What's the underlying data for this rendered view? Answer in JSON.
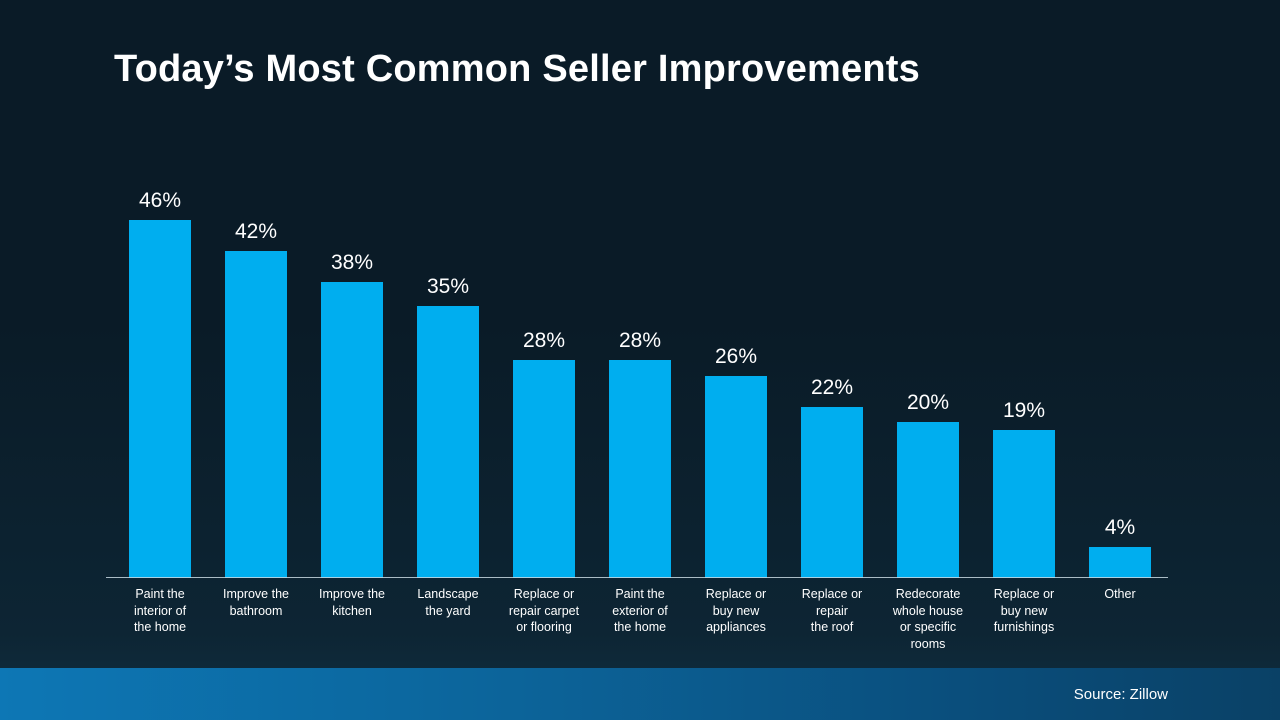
{
  "title": "Today’s Most Common Seller Improvements",
  "source": "Source: Zillow",
  "colors": {
    "background": "#0a1b27",
    "bar": "#00aeef",
    "title_text": "#ffffff",
    "label_text": "#ffffff",
    "axis_line": "#c8d7e1",
    "footer_gradient_left": "#0d77b5",
    "footer_gradient_right": "#0a4166"
  },
  "chart_data": {
    "type": "bar",
    "title": "Today’s Most Common Seller Improvements",
    "xlabel": "",
    "ylabel": "",
    "ylim": [
      0,
      46
    ],
    "grid": false,
    "legend": false,
    "categories": [
      "Paint the interior of the home",
      "Improve the bathroom",
      "Improve the kitchen",
      "Landscape the yard",
      "Replace or repair carpet or flooring",
      "Paint the exterior of the home",
      "Replace or buy new appliances",
      "Replace or repair the roof",
      "Redecorate whole house or specific rooms",
      "Replace or buy new furnishings",
      "Other"
    ],
    "category_lines": [
      [
        "Paint the",
        "interior of",
        "the home"
      ],
      [
        "Improve the",
        "bathroom"
      ],
      [
        "Improve the",
        "kitchen"
      ],
      [
        "Landscape",
        "the yard"
      ],
      [
        "Replace or",
        "repair carpet",
        "or flooring"
      ],
      [
        "Paint the",
        "exterior of",
        "the home"
      ],
      [
        "Replace or",
        "buy new",
        "appliances"
      ],
      [
        "Replace or",
        "repair",
        "the roof"
      ],
      [
        "Redecorate",
        "whole house",
        "or specific",
        "rooms"
      ],
      [
        "Replace or",
        "buy new",
        "furnishings"
      ],
      [
        "Other"
      ]
    ],
    "values": [
      46,
      42,
      38,
      35,
      28,
      28,
      26,
      22,
      20,
      19,
      4
    ],
    "value_labels": [
      "46%",
      "42%",
      "38%",
      "35%",
      "28%",
      "28%",
      "26%",
      "22%",
      "20%",
      "19%",
      "4%"
    ]
  }
}
